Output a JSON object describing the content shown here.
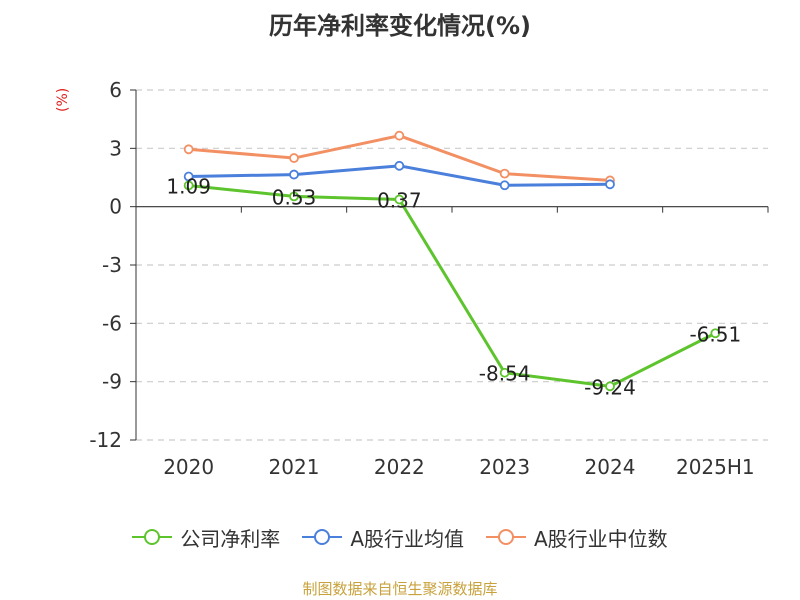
{
  "title": "历年净利率变化情况(%)",
  "chart_data": {
    "type": "line",
    "title": "历年净利率变化情况(%)",
    "ylabel": "(%)",
    "xlabel": "",
    "categories": [
      "2020",
      "2021",
      "2022",
      "2023",
      "2024",
      "2025H1"
    ],
    "ylim": [
      -12,
      6
    ],
    "yticks": [
      6,
      3,
      0,
      -3,
      -6,
      -9,
      -12
    ],
    "grid": true,
    "legend_position": "bottom",
    "series": [
      {
        "name": "公司净利率",
        "color": "#5ec42d",
        "values": [
          1.09,
          0.53,
          0.37,
          -8.54,
          -9.24,
          -6.51
        ],
        "labels": [
          "1.09",
          "0.53",
          "0.37",
          "-8.54",
          "-9.24",
          "-6.51"
        ]
      },
      {
        "name": "A股行业均值",
        "color": "#4a7fdc",
        "values": [
          1.55,
          1.65,
          2.1,
          1.1,
          1.15,
          null
        ]
      },
      {
        "name": "A股行业中位数",
        "color": "#f39063",
        "values": [
          2.95,
          2.5,
          3.65,
          1.7,
          1.35,
          null
        ]
      }
    ]
  },
  "footer": {
    "source": "制图数据来自恒生聚源数据库"
  }
}
